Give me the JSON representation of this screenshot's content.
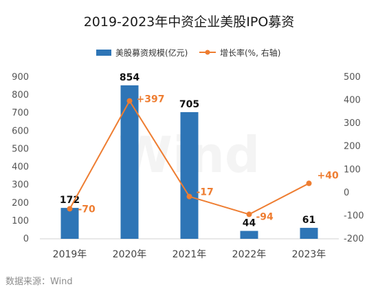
{
  "chart_data": {
    "type": "bar",
    "title": "2019-2023年中资企业美股IPO募资",
    "categories": [
      "2019年",
      "2020年",
      "2021年",
      "2022年",
      "2023年"
    ],
    "series": [
      {
        "name": "美股募资规模(亿元)",
        "type": "bar",
        "axis": "left",
        "values": [
          172,
          854,
          705,
          44,
          61
        ],
        "color": "#2e75b6"
      },
      {
        "name": "增长率(%, 右轴)",
        "type": "line",
        "axis": "right",
        "values": [
          -70,
          397,
          -17,
          -94,
          40
        ],
        "labels": [
          "-70",
          "+397",
          "-17",
          "-94",
          "+40"
        ],
        "color": "#ee7d31"
      }
    ],
    "y_left": {
      "min": 0,
      "max": 900,
      "ticks": [
        0,
        100,
        200,
        300,
        400,
        500,
        600,
        700,
        800,
        900
      ]
    },
    "y_right": {
      "min": -200,
      "max": 500,
      "ticks": [
        -200,
        -100,
        0,
        100,
        200,
        300,
        400,
        500
      ]
    },
    "grid": false,
    "legend_position": "top-center",
    "source": "数据来源：Wind",
    "watermark": "Wind"
  }
}
